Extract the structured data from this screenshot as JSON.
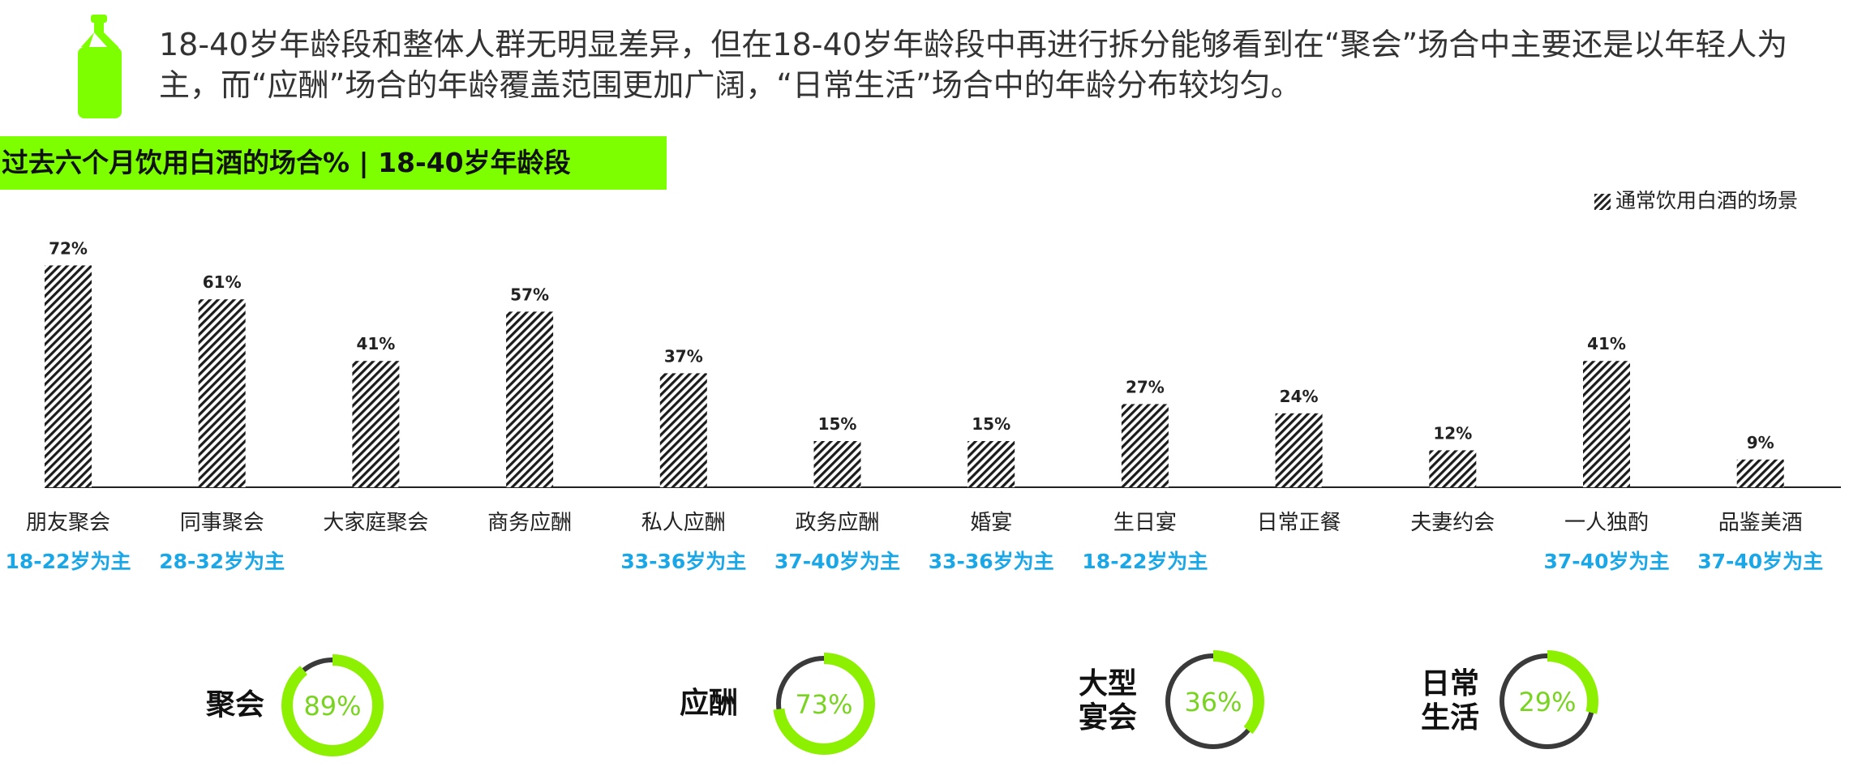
{
  "summary_text": "18-40岁年龄段和整体人群无明显差异，但在18-40岁年龄段中再进行拆分能够看到在“聚会”场合中主要还是以年轻人为主，而“应酬”场合的年龄覆盖范围更加广阔，“日常生活”场合中的年龄分布较均匀。",
  "section_title": "过去六个月饮用白酒的场合% | 18-40岁年龄段",
  "legend_label": "通常饮用白酒的场景",
  "colors": {
    "accent_green": "#7dff00",
    "ring_green": "#8cf000",
    "ring_dark": "#3a3a3a",
    "age_blue": "#1aa7e8",
    "pct_green": "#79d421"
  },
  "chart_data": {
    "type": "bar",
    "title": "过去六个月饮用白酒的场合% | 18-40岁年龄段",
    "categories": [
      "朋友聚会",
      "同事聚会",
      "大家庭聚会",
      "商务应酬",
      "私人应酬",
      "政务应酬",
      "婚宴",
      "生日宴",
      "日常正餐",
      "夫妻约会",
      "一人独酌",
      "品鉴美酒"
    ],
    "series": [
      {
        "name": "通常饮用白酒的场景",
        "values": [
          72,
          61,
          41,
          57,
          37,
          15,
          15,
          27,
          24,
          12,
          41,
          9
        ]
      }
    ],
    "data_labels": [
      "72%",
      "61%",
      "41%",
      "57%",
      "37%",
      "15%",
      "15%",
      "27%",
      "24%",
      "12%",
      "41%",
      "9%"
    ],
    "age_notes": [
      "18-22岁为主",
      "28-32岁为主",
      "",
      "",
      "33-36岁为主",
      "37-40岁为主",
      "33-36岁为主",
      "18-22岁为主",
      "",
      "",
      "37-40岁为主",
      "37-40岁为主"
    ],
    "ylim": [
      0,
      80
    ],
    "grid": false,
    "legend_position": "top-right"
  },
  "rings": [
    {
      "label": "聚会",
      "value": 89,
      "value_text": "89%"
    },
    {
      "label": "应酬",
      "value": 73,
      "value_text": "73%"
    },
    {
      "label": "大型\n宴会",
      "value": 36,
      "value_text": "36%"
    },
    {
      "label": "日常\n生活",
      "value": 29,
      "value_text": "29%"
    }
  ]
}
